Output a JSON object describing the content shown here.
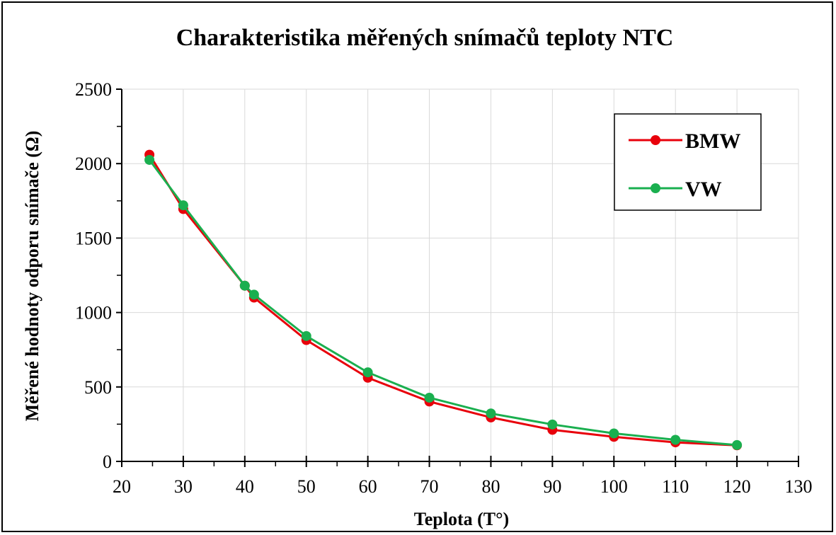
{
  "chart_data": {
    "type": "line",
    "title": "Charakteristika měřených snímačů teploty NTC",
    "xlabel": "Teplota (T°)",
    "ylabel": "Měřené hodnoty odporu snímače (Ω)",
    "xlim": [
      20,
      130
    ],
    "ylim": [
      0,
      2500
    ],
    "x_ticks": [
      "20",
      "30",
      "40",
      "50",
      "60",
      "70",
      "80",
      "90",
      "100",
      "110",
      "120",
      "130"
    ],
    "y_ticks": [
      "0",
      "500",
      "1000",
      "1500",
      "2000",
      "2500"
    ],
    "grid": true,
    "legend_position": "top-right",
    "series": [
      {
        "name": "BMW",
        "color": "#e8000b",
        "points": [
          [
            24.5,
            2060
          ],
          [
            30,
            1695
          ],
          [
            40,
            1180
          ],
          [
            41.5,
            1100
          ],
          [
            50,
            815
          ],
          [
            60,
            562
          ],
          [
            70,
            402
          ],
          [
            80,
            295
          ],
          [
            90,
            212
          ],
          [
            100,
            165
          ],
          [
            110,
            128
          ],
          [
            120,
            108
          ]
        ]
      },
      {
        "name": "VW",
        "color": "#1aaf4f",
        "points": [
          [
            24.5,
            2025
          ],
          [
            30,
            1720
          ],
          [
            40,
            1180
          ],
          [
            41.5,
            1120
          ],
          [
            50,
            842
          ],
          [
            60,
            598
          ],
          [
            70,
            428
          ],
          [
            80,
            322
          ],
          [
            90,
            248
          ],
          [
            100,
            188
          ],
          [
            110,
            145
          ],
          [
            120,
            110
          ]
        ]
      }
    ]
  }
}
